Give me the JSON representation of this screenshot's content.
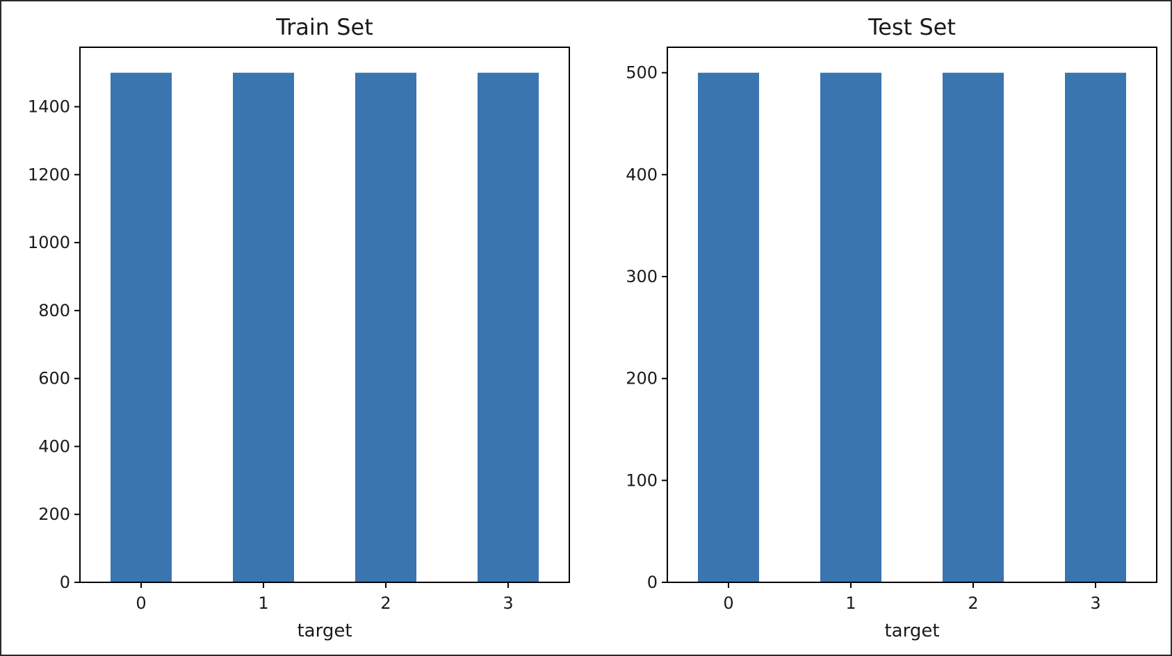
{
  "chart_data": [
    {
      "type": "bar",
      "title": "Train Set",
      "xlabel": "target",
      "ylabel": "",
      "categories": [
        "0",
        "1",
        "2",
        "3"
      ],
      "values": [
        1500,
        1500,
        1500,
        1500
      ],
      "ylim": [
        0,
        1575
      ],
      "yticks": [
        0,
        200,
        400,
        600,
        800,
        1000,
        1200,
        1400
      ],
      "color": "#3a75af",
      "grid": false
    },
    {
      "type": "bar",
      "title": "Test Set",
      "xlabel": "target",
      "ylabel": "",
      "categories": [
        "0",
        "1",
        "2",
        "3"
      ],
      "values": [
        500,
        500,
        500,
        500
      ],
      "ylim": [
        0,
        525
      ],
      "yticks": [
        0,
        100,
        200,
        300,
        400,
        500
      ],
      "color": "#3a75af",
      "grid": false
    }
  ]
}
